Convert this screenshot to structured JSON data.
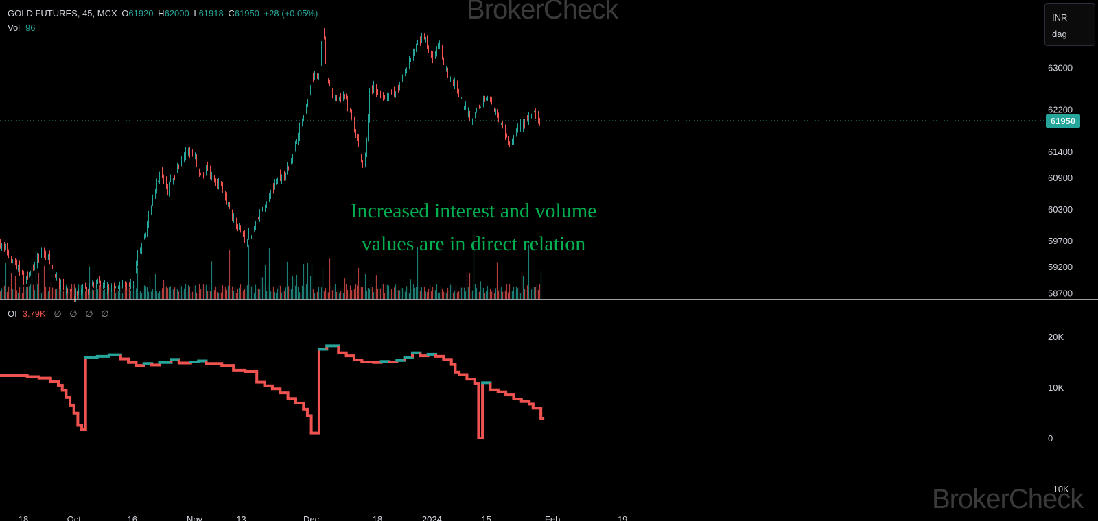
{
  "watermark_top": "BrokerCheck",
  "watermark_bottom": "BrokerCheck",
  "legend": {
    "symbol": "GOLD FUTURES, 45, MCX",
    "o_label": "O",
    "o_value": "61920",
    "h_label": "H",
    "h_value": "62000",
    "l_label": "L",
    "l_value": "61918",
    "c_label": "C",
    "c_value": "61950",
    "change": "+28 (+0.05%)",
    "vol_label": "Vol",
    "vol_value": "96",
    "oi_label": "OI",
    "oi_value": "3.79K",
    "oi_na": [
      "∅",
      "∅",
      "∅",
      "∅"
    ]
  },
  "currency": {
    "code": "INR",
    "period": "dag"
  },
  "annotation": {
    "line1": "Increased interest and volume",
    "line2": "values are in direct relation"
  },
  "last_price_label": "61950",
  "colors": {
    "up": "#26a69a",
    "down": "#ef5350",
    "annotation": "#00b050",
    "background": "#000000",
    "axis_text": "#d1d4dc"
  },
  "chart_data": [
    {
      "type": "candlestick",
      "title": "GOLD FUTURES, 45, MCX",
      "ylabel": "INR",
      "ylim": [
        58600,
        64000
      ],
      "y_ticks": [
        58700,
        59200,
        59700,
        60300,
        60900,
        61400,
        62200,
        63000
      ],
      "y_tick_labels": [
        "58700",
        "59200",
        "59700",
        "60300",
        "60900",
        "61400",
        "62200",
        "63000"
      ],
      "x_ticks": [
        "18",
        "Oct",
        "16",
        "Nov",
        "13",
        "Dec",
        "18",
        "2024",
        "15",
        "Feb",
        "19"
      ],
      "last_value": 61950,
      "close_path": [
        [
          "Sep 12",
          59650
        ],
        [
          "Sep 14",
          59450
        ],
        [
          "Sep 16",
          59250
        ],
        [
          "Sep 18",
          58950
        ],
        [
          "Sep 21",
          59250
        ],
        [
          "Sep 23",
          59550
        ],
        [
          "Sep 25",
          59250
        ],
        [
          "Sep 27",
          58850
        ],
        [
          "Oct 1",
          58650
        ],
        [
          "Oct 4",
          58750
        ],
        [
          "Oct 6",
          58900
        ],
        [
          "Oct 10",
          58800
        ],
        [
          "Oct 12",
          58850
        ],
        [
          "Oct 16",
          58850
        ],
        [
          "Oct 17",
          59300
        ],
        [
          "Oct 19",
          59800
        ],
        [
          "Oct 21",
          60400
        ],
        [
          "Oct 23",
          61050
        ],
        [
          "Oct 25",
          60700
        ],
        [
          "Oct 27",
          61000
        ],
        [
          "Oct 30",
          61400
        ],
        [
          "Nov 1",
          61300
        ],
        [
          "Nov 2",
          60900
        ],
        [
          "Nov 4",
          61100
        ],
        [
          "Nov 6",
          60900
        ],
        [
          "Nov 8",
          60700
        ],
        [
          "Nov 10",
          60300
        ],
        [
          "Nov 12",
          59950
        ],
        [
          "Nov 14",
          59700
        ],
        [
          "Nov 16",
          59900
        ],
        [
          "Nov 18",
          60300
        ],
        [
          "Nov 20",
          60500
        ],
        [
          "Nov 22",
          60900
        ],
        [
          "Nov 24",
          60900
        ],
        [
          "Nov 26",
          61300
        ],
        [
          "Nov 28",
          61900
        ],
        [
          "Nov 30",
          62300
        ],
        [
          "Dec 1",
          62800
        ],
        [
          "Dec 3",
          62900
        ],
        [
          "Dec 4",
          63900
        ],
        [
          "Dec 5",
          62700
        ],
        [
          "Dec 7",
          62400
        ],
        [
          "Dec 9",
          62500
        ],
        [
          "Dec 11",
          62200
        ],
        [
          "Dec 13",
          61500
        ],
        [
          "Dec 14",
          61100
        ],
        [
          "Dec 15",
          61300
        ],
        [
          "Dec 16",
          62700
        ],
        [
          "Dec 18",
          62500
        ],
        [
          "Dec 20",
          62400
        ],
        [
          "Dec 22",
          62500
        ],
        [
          "Dec 24",
          62700
        ],
        [
          "Dec 26",
          63100
        ],
        [
          "Dec 28",
          63400
        ],
        [
          "Dec 30",
          63600
        ],
        [
          "Jan 1",
          63200
        ],
        [
          "Jan 3",
          63400
        ],
        [
          "Jan 5",
          62800
        ],
        [
          "Jan 7",
          62700
        ],
        [
          "Jan 9",
          62300
        ],
        [
          "Jan 11",
          62000
        ],
        [
          "Jan 13",
          62200
        ],
        [
          "Jan 15",
          62500
        ],
        [
          "Jan 17",
          62200
        ],
        [
          "Jan 19",
          61900
        ],
        [
          "Jan 21",
          61500
        ],
        [
          "Jan 23",
          61800
        ],
        [
          "Jan 25",
          62000
        ],
        [
          "Jan 27",
          62100
        ],
        [
          "Jan 29",
          61950
        ]
      ]
    },
    {
      "type": "bar",
      "title": "Vol",
      "last_value": 96
    },
    {
      "type": "line",
      "title": "OI",
      "ylim": [
        -10000,
        25000
      ],
      "y_ticks": [
        -10000,
        0,
        10000,
        20000
      ],
      "y_tick_labels": [
        "−10K",
        "0",
        "10K",
        "20K"
      ],
      "last_value": 3790,
      "series": [
        {
          "name": "OI",
          "steps": [
            [
              "Sep 12",
              12300
            ],
            [
              "Sep 19",
              12100
            ],
            [
              "Sep 22",
              11800
            ],
            [
              "Sep 25",
              11200
            ],
            [
              "Sep 27",
              10400
            ],
            [
              "Sep 28",
              9400
            ],
            [
              "Sep 29",
              8000
            ],
            [
              "Sep 30",
              6500
            ],
            [
              "Oct 1",
              4900
            ],
            [
              "Oct 2",
              2500
            ],
            [
              "Oct 3",
              1700
            ],
            [
              "Oct 4",
              15900
            ],
            [
              "Oct 7",
              16100
            ],
            [
              "Oct 10",
              16400
            ],
            [
              "Oct 13",
              15600
            ],
            [
              "Oct 15",
              14900
            ],
            [
              "Oct 17",
              14300
            ],
            [
              "Oct 19",
              14700
            ],
            [
              "Oct 21",
              14400
            ],
            [
              "Oct 23",
              14900
            ],
            [
              "Oct 26",
              15500
            ],
            [
              "Oct 28",
              14800
            ],
            [
              "Oct 31",
              15000
            ],
            [
              "Nov 2",
              15200
            ],
            [
              "Nov 4",
              14700
            ],
            [
              "Nov 8",
              14300
            ],
            [
              "Nov 11",
              13400
            ],
            [
              "Nov 14",
              13100
            ],
            [
              "Nov 17",
              11000
            ],
            [
              "Nov 19",
              10300
            ],
            [
              "Nov 21",
              9700
            ],
            [
              "Nov 23",
              8900
            ],
            [
              "Nov 25",
              7800
            ],
            [
              "Nov 27",
              6900
            ],
            [
              "Nov 29",
              5700
            ],
            [
              "Nov 30",
              4400
            ],
            [
              "Dec 1",
              1000
            ],
            [
              "Dec 3",
              17500
            ],
            [
              "Dec 5",
              18200
            ],
            [
              "Dec 8",
              16800
            ],
            [
              "Dec 10",
              16200
            ],
            [
              "Dec 12",
              15400
            ],
            [
              "Dec 14",
              15000
            ],
            [
              "Dec 17",
              14900
            ],
            [
              "Dec 19",
              15100
            ],
            [
              "Dec 21",
              15000
            ],
            [
              "Dec 23",
              15300
            ],
            [
              "Dec 25",
              15900
            ],
            [
              "Dec 27",
              16800
            ],
            [
              "Dec 29",
              16200
            ],
            [
              "Dec 31",
              16500
            ],
            [
              "Jan 2",
              16100
            ],
            [
              "Jan 4",
              15500
            ],
            [
              "Jan 6",
              14500
            ],
            [
              "Jan 7",
              13000
            ],
            [
              "Jan 8",
              12500
            ],
            [
              "Jan 10",
              11600
            ],
            [
              "Jan 12",
              10800
            ],
            [
              "Jan 13",
              0
            ],
            [
              "Jan 14",
              10900
            ],
            [
              "Jan 16",
              9500
            ],
            [
              "Jan 18",
              9100
            ],
            [
              "Jan 20",
              8500
            ],
            [
              "Jan 22",
              7700
            ],
            [
              "Jan 24",
              7200
            ],
            [
              "Jan 26",
              6700
            ],
            [
              "Jan 27",
              5900
            ],
            [
              "Jan 29",
              4800
            ],
            [
              "Jan 29",
              3790
            ]
          ]
        }
      ]
    }
  ]
}
